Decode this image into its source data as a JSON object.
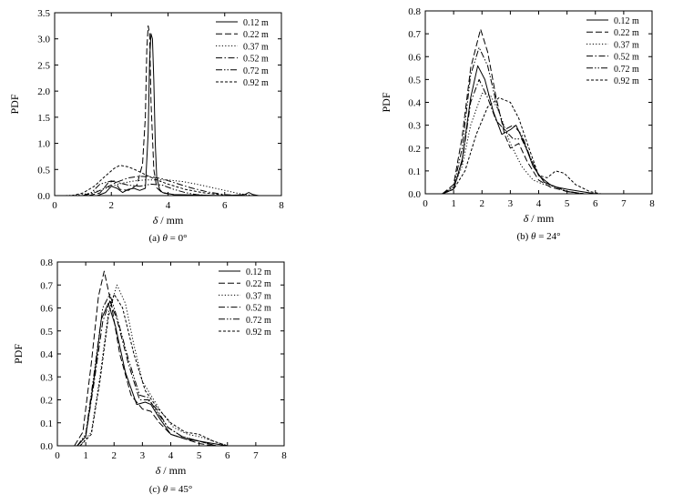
{
  "legend_labels": [
    "0.12 m",
    "0.22 m",
    "0.37 m",
    "0.52 m",
    "0.72 m",
    "0.92 m"
  ],
  "chart_data": [
    {
      "type": "line",
      "caption_prefix": "(a) ",
      "caption_var": "θ",
      "caption_value": " = 0°",
      "xlabel_var": "δ",
      "xlabel_unit": " / mm",
      "ylabel": "PDF",
      "xlim": [
        0,
        8
      ],
      "ylim": [
        0,
        3.5
      ],
      "xticks": [
        0,
        2,
        4,
        6,
        8
      ],
      "yticks": [
        0.0,
        0.5,
        1.0,
        1.5,
        2.0,
        2.5,
        3.0,
        3.5
      ],
      "ytick_labels": [
        "0.0",
        "0.5",
        "1.0",
        "1.5",
        "2.0",
        "2.5",
        "3.0",
        "3.5"
      ],
      "legend_position": "top-right",
      "series": [
        {
          "name": "0.12 m",
          "style": "solid",
          "x": [
            1.5,
            1.8,
            2.0,
            2.2,
            2.4,
            2.6,
            2.8,
            3.0,
            3.2,
            3.3,
            3.35,
            3.4,
            3.45,
            3.5,
            3.55,
            3.6,
            3.7,
            3.8,
            4.2,
            5.0,
            6.0,
            6.7,
            6.85,
            7.0,
            7.2
          ],
          "y": [
            0.0,
            0.06,
            0.18,
            0.14,
            0.06,
            0.12,
            0.14,
            0.1,
            0.14,
            1.2,
            2.6,
            3.1,
            3.0,
            2.2,
            1.0,
            0.35,
            0.12,
            0.06,
            0.02,
            0.01,
            0.0,
            0.02,
            0.06,
            0.02,
            0.0
          ]
        },
        {
          "name": "0.22 m",
          "style": "dash",
          "x": [
            1.2,
            1.6,
            1.9,
            2.1,
            2.3,
            2.6,
            2.9,
            3.1,
            3.2,
            3.25,
            3.3,
            3.35,
            3.4,
            3.5,
            3.6,
            3.8,
            4.2,
            4.6
          ],
          "y": [
            0.0,
            0.05,
            0.25,
            0.28,
            0.12,
            0.1,
            0.2,
            0.6,
            1.5,
            2.8,
            3.25,
            3.1,
            1.8,
            0.5,
            0.15,
            0.05,
            0.02,
            0.0
          ]
        },
        {
          "name": "0.37 m",
          "style": "dot",
          "x": [
            0.3,
            0.8,
            1.2,
            1.6,
            2.0,
            2.4,
            2.8,
            3.2,
            3.6,
            4.0,
            4.5,
            5.0,
            5.5,
            6.0,
            6.5,
            7.0
          ],
          "y": [
            0.0,
            0.01,
            0.04,
            0.1,
            0.18,
            0.24,
            0.28,
            0.3,
            0.3,
            0.3,
            0.27,
            0.22,
            0.16,
            0.1,
            0.04,
            0.0
          ]
        },
        {
          "name": "0.52 m",
          "style": "dashdot",
          "x": [
            1.0,
            1.4,
            1.8,
            2.2,
            2.6,
            3.0,
            3.4,
            3.8,
            4.2,
            4.8,
            5.4,
            6.0,
            6.6
          ],
          "y": [
            0.0,
            0.05,
            0.15,
            0.26,
            0.34,
            0.37,
            0.36,
            0.32,
            0.25,
            0.15,
            0.07,
            0.02,
            0.0
          ]
        },
        {
          "name": "0.72 m",
          "style": "dashdotdot",
          "x": [
            1.0,
            1.3,
            1.6,
            2.0,
            2.3,
            2.6,
            3.0,
            3.4,
            3.8,
            4.2,
            4.6,
            5.0,
            5.5
          ],
          "y": [
            0.0,
            0.06,
            0.22,
            0.28,
            0.24,
            0.2,
            0.18,
            0.22,
            0.2,
            0.12,
            0.06,
            0.02,
            0.0
          ]
        },
        {
          "name": "0.92 m",
          "style": "shortdash",
          "x": [
            0.6,
            1.0,
            1.4,
            1.8,
            2.1,
            2.3,
            2.6,
            2.9,
            3.2,
            3.6,
            4.0,
            4.6,
            5.2,
            5.8,
            6.4
          ],
          "y": [
            0.0,
            0.05,
            0.18,
            0.38,
            0.52,
            0.58,
            0.55,
            0.48,
            0.4,
            0.3,
            0.22,
            0.12,
            0.06,
            0.02,
            0.0
          ]
        }
      ]
    },
    {
      "type": "line",
      "caption_prefix": "(b) ",
      "caption_var": "θ",
      "caption_value": " = 24°",
      "xlabel_var": "δ",
      "xlabel_unit": " / mm",
      "ylabel": "PDF",
      "xlim": [
        0,
        8
      ],
      "ylim": [
        0,
        0.8
      ],
      "xticks": [
        0,
        1,
        2,
        3,
        4,
        5,
        6,
        7,
        8
      ],
      "yticks": [
        0.0,
        0.1,
        0.2,
        0.3,
        0.4,
        0.5,
        0.6,
        0.7,
        0.8
      ],
      "ytick_labels": [
        "0.0",
        "0.1",
        "0.2",
        "0.3",
        "0.4",
        "0.5",
        "0.6",
        "0.7",
        "0.8"
      ],
      "legend_position": "top-right",
      "series": [
        {
          "name": "0.12 m",
          "style": "solid",
          "x": [
            0.6,
            1.0,
            1.3,
            1.6,
            1.85,
            2.1,
            2.4,
            2.7,
            3.0,
            3.2,
            3.5,
            3.8,
            4.2,
            4.6,
            5.0,
            5.5,
            6.0
          ],
          "y": [
            0.0,
            0.02,
            0.15,
            0.42,
            0.56,
            0.5,
            0.36,
            0.26,
            0.28,
            0.3,
            0.22,
            0.12,
            0.05,
            0.03,
            0.02,
            0.01,
            0.0
          ]
        },
        {
          "name": "0.22 m",
          "style": "dash",
          "x": [
            0.6,
            1.0,
            1.3,
            1.6,
            1.95,
            2.2,
            2.5,
            2.8,
            3.0,
            3.3,
            3.6,
            4.0,
            4.4,
            5.0,
            5.6
          ],
          "y": [
            0.0,
            0.04,
            0.25,
            0.55,
            0.72,
            0.62,
            0.42,
            0.26,
            0.2,
            0.22,
            0.14,
            0.06,
            0.03,
            0.01,
            0.0
          ]
        },
        {
          "name": "0.37 m",
          "style": "dot",
          "x": [
            0.6,
            1.0,
            1.3,
            1.6,
            2.0,
            2.3,
            2.6,
            3.0,
            3.4,
            3.8,
            4.2,
            4.6,
            5.0,
            5.6
          ],
          "y": [
            0.0,
            0.03,
            0.12,
            0.3,
            0.44,
            0.43,
            0.36,
            0.22,
            0.12,
            0.06,
            0.04,
            0.03,
            0.01,
            0.0
          ]
        },
        {
          "name": "0.52 m",
          "style": "dashdot",
          "x": [
            0.6,
            1.0,
            1.3,
            1.6,
            1.9,
            2.2,
            2.5,
            2.8,
            3.1,
            3.4,
            3.7,
            4.0,
            4.4,
            5.0,
            5.6
          ],
          "y": [
            0.0,
            0.02,
            0.14,
            0.4,
            0.5,
            0.42,
            0.32,
            0.28,
            0.3,
            0.26,
            0.16,
            0.08,
            0.04,
            0.01,
            0.0
          ]
        },
        {
          "name": "0.72 m",
          "style": "dashdotdot",
          "x": [
            0.6,
            1.0,
            1.3,
            1.6,
            1.9,
            2.2,
            2.5,
            2.8,
            3.1,
            3.4,
            3.7,
            4.0,
            4.4,
            5.0,
            5.6
          ],
          "y": [
            0.0,
            0.03,
            0.2,
            0.52,
            0.64,
            0.56,
            0.4,
            0.28,
            0.24,
            0.24,
            0.16,
            0.08,
            0.04,
            0.01,
            0.0
          ]
        },
        {
          "name": "0.92 m",
          "style": "shortdash",
          "x": [
            0.6,
            1.0,
            1.4,
            1.8,
            2.2,
            2.6,
            3.0,
            3.3,
            3.6,
            4.0,
            4.3,
            4.6,
            4.9,
            5.3,
            5.8,
            6.2
          ],
          "y": [
            0.0,
            0.02,
            0.1,
            0.26,
            0.38,
            0.42,
            0.4,
            0.33,
            0.22,
            0.08,
            0.07,
            0.1,
            0.09,
            0.04,
            0.01,
            0.0
          ]
        }
      ]
    },
    {
      "type": "line",
      "caption_prefix": "(c) ",
      "caption_var": "θ",
      "caption_value": " = 45°",
      "xlabel_var": "δ",
      "xlabel_unit": " / mm",
      "ylabel": "PDF",
      "xlim": [
        0,
        8
      ],
      "ylim": [
        0,
        0.8
      ],
      "xticks": [
        0,
        1,
        2,
        3,
        4,
        5,
        6,
        7,
        8
      ],
      "yticks": [
        0.0,
        0.1,
        0.2,
        0.3,
        0.4,
        0.5,
        0.6,
        0.7,
        0.8
      ],
      "ytick_labels": [
        "0.0",
        "0.1",
        "0.2",
        "0.3",
        "0.4",
        "0.5",
        "0.6",
        "0.7",
        "0.8"
      ],
      "legend_position": "top-right",
      "series": [
        {
          "name": "0.12 m",
          "style": "solid",
          "x": [
            0.7,
            1.0,
            1.3,
            1.55,
            1.8,
            2.05,
            2.4,
            2.8,
            3.1,
            3.3,
            3.6,
            4.0,
            4.5,
            5.0,
            5.5,
            6.0
          ],
          "y": [
            0.0,
            0.04,
            0.3,
            0.55,
            0.62,
            0.52,
            0.32,
            0.18,
            0.19,
            0.18,
            0.12,
            0.05,
            0.03,
            0.02,
            0.01,
            0.0
          ]
        },
        {
          "name": "0.22 m",
          "style": "dash",
          "x": [
            0.6,
            0.9,
            1.2,
            1.45,
            1.65,
            1.9,
            2.2,
            2.6,
            3.0,
            3.3,
            3.6,
            4.0,
            4.5,
            5.0,
            5.5
          ],
          "y": [
            0.0,
            0.06,
            0.36,
            0.65,
            0.76,
            0.62,
            0.4,
            0.22,
            0.16,
            0.15,
            0.1,
            0.05,
            0.03,
            0.01,
            0.0
          ]
        },
        {
          "name": "0.37 m",
          "style": "dot",
          "x": [
            0.8,
            1.2,
            1.5,
            1.8,
            2.1,
            2.4,
            2.7,
            3.0,
            3.3,
            3.7,
            4.1,
            4.6,
            5.0,
            5.5,
            6.0
          ],
          "y": [
            0.0,
            0.06,
            0.3,
            0.58,
            0.7,
            0.62,
            0.44,
            0.28,
            0.22,
            0.14,
            0.08,
            0.05,
            0.04,
            0.02,
            0.0
          ]
        },
        {
          "name": "0.52 m",
          "style": "dashdot",
          "x": [
            0.7,
            1.0,
            1.3,
            1.6,
            1.85,
            2.1,
            2.5,
            2.9,
            3.2,
            3.5,
            3.9,
            4.4,
            5.0,
            5.6
          ],
          "y": [
            0.0,
            0.04,
            0.28,
            0.54,
            0.63,
            0.55,
            0.36,
            0.2,
            0.2,
            0.16,
            0.08,
            0.04,
            0.02,
            0.0
          ]
        },
        {
          "name": "0.72 m",
          "style": "dashdotdot",
          "x": [
            0.7,
            1.0,
            1.3,
            1.6,
            1.85,
            2.1,
            2.5,
            2.9,
            3.2,
            3.5,
            3.9,
            4.4,
            5.0,
            5.6
          ],
          "y": [
            0.0,
            0.05,
            0.32,
            0.6,
            0.66,
            0.56,
            0.38,
            0.22,
            0.21,
            0.15,
            0.08,
            0.04,
            0.02,
            0.0
          ]
        },
        {
          "name": "0.92 m",
          "style": "shortdash",
          "x": [
            0.8,
            1.2,
            1.5,
            1.8,
            2.0,
            2.3,
            2.7,
            3.1,
            3.5,
            4.0,
            4.5,
            5.0,
            5.5,
            6.0
          ],
          "y": [
            0.0,
            0.05,
            0.28,
            0.56,
            0.66,
            0.6,
            0.4,
            0.24,
            0.17,
            0.1,
            0.06,
            0.05,
            0.02,
            0.0
          ]
        }
      ]
    }
  ]
}
